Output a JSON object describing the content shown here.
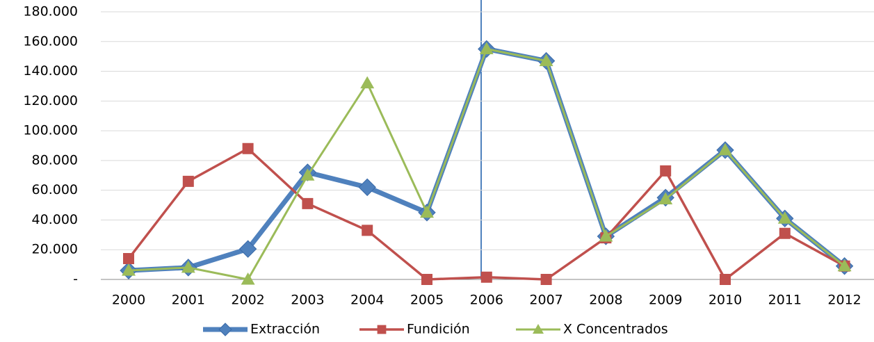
{
  "chart_data": {
    "type": "line",
    "categories": [
      "2000",
      "2001",
      "2002",
      "2003",
      "2004",
      "2005",
      "2006",
      "2007",
      "2008",
      "2009",
      "2010",
      "2011",
      "2012"
    ],
    "series": [
      {
        "name": "Extracción",
        "color": "#4f81bd",
        "marker": "diamond",
        "values": [
          6000,
          8000,
          20500,
          72000,
          62000,
          45000,
          155000,
          147000,
          29000,
          55000,
          87000,
          41000,
          9000
        ]
      },
      {
        "name": "Fundición",
        "color": "#c0504d",
        "marker": "square",
        "values": [
          14000,
          66000,
          88000,
          51000,
          33000,
          0,
          1500,
          0,
          28000,
          73000,
          0,
          31000,
          9000
        ]
      },
      {
        "name": "X Concentrados",
        "color": "#9bbb59",
        "marker": "triangle",
        "values": [
          6000,
          8000,
          0,
          70000,
          132000,
          45000,
          155000,
          147000,
          29000,
          54000,
          87000,
          41000,
          9000
        ]
      }
    ],
    "ylim": [
      0,
      180000
    ],
    "yticks": [
      {
        "value": 0,
        "label": "-"
      },
      {
        "value": 20000,
        "label": "20.000"
      },
      {
        "value": 40000,
        "label": "40.000"
      },
      {
        "value": 60000,
        "label": "60.000"
      },
      {
        "value": 80000,
        "label": "80.000"
      },
      {
        "value": 100000,
        "label": "100.000"
      },
      {
        "value": 120000,
        "label": "120.000"
      },
      {
        "value": 140000,
        "label": "140.000"
      },
      {
        "value": 160000,
        "label": "160.000"
      },
      {
        "value": 180000,
        "label": "180.000"
      }
    ],
    "grid": true,
    "legend": "bottom"
  }
}
